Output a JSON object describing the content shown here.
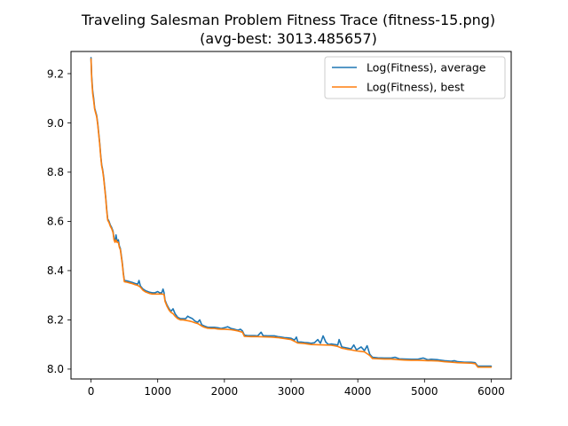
{
  "chart_data": {
    "type": "line",
    "title": "Traveling Salesman Problem Fitness Trace (fitness-15.png)",
    "subtitle": "(avg-best: 3013.485657)",
    "xlabel": "",
    "ylabel": "",
    "xlim": [
      -300,
      6300
    ],
    "ylim": [
      7.96,
      9.29
    ],
    "xticks": [
      0,
      1000,
      2000,
      3000,
      4000,
      5000,
      6000
    ],
    "xtick_labels": [
      "0",
      "1000",
      "2000",
      "3000",
      "4000",
      "5000",
      "6000"
    ],
    "yticks": [
      8.0,
      8.2,
      8.4,
      8.6,
      8.8,
      9.0,
      9.2
    ],
    "ytick_labels": [
      "8.0",
      "8.2",
      "8.4",
      "8.6",
      "8.8",
      "9.0",
      "9.2"
    ],
    "grid": false,
    "legend_position": "top-right",
    "series": [
      {
        "name": "Log(Fitness), average",
        "color": "#1f77b4",
        "points": [
          [
            0,
            9.265
          ],
          [
            10,
            9.19
          ],
          [
            25,
            9.13
          ],
          [
            40,
            9.1
          ],
          [
            55,
            9.06
          ],
          [
            70,
            9.045
          ],
          [
            85,
            9.03
          ],
          [
            100,
            9.0
          ],
          [
            115,
            8.96
          ],
          [
            130,
            8.92
          ],
          [
            145,
            8.87
          ],
          [
            160,
            8.83
          ],
          [
            175,
            8.81
          ],
          [
            190,
            8.78
          ],
          [
            205,
            8.74
          ],
          [
            220,
            8.7
          ],
          [
            235,
            8.65
          ],
          [
            250,
            8.61
          ],
          [
            270,
            8.6
          ],
          [
            290,
            8.585
          ],
          [
            310,
            8.575
          ],
          [
            330,
            8.56
          ],
          [
            345,
            8.53
          ],
          [
            360,
            8.52
          ],
          [
            375,
            8.545
          ],
          [
            390,
            8.52
          ],
          [
            410,
            8.525
          ],
          [
            425,
            8.5
          ],
          [
            440,
            8.49
          ],
          [
            455,
            8.46
          ],
          [
            470,
            8.43
          ],
          [
            485,
            8.39
          ],
          [
            500,
            8.36
          ],
          [
            540,
            8.358
          ],
          [
            580,
            8.355
          ],
          [
            620,
            8.352
          ],
          [
            660,
            8.348
          ],
          [
            700,
            8.345
          ],
          [
            720,
            8.36
          ],
          [
            740,
            8.338
          ],
          [
            780,
            8.325
          ],
          [
            820,
            8.318
          ],
          [
            850,
            8.315
          ],
          [
            880,
            8.312
          ],
          [
            920,
            8.31
          ],
          [
            960,
            8.31
          ],
          [
            1000,
            8.315
          ],
          [
            1030,
            8.31
          ],
          [
            1060,
            8.31
          ],
          [
            1080,
            8.325
          ],
          [
            1095,
            8.31
          ],
          [
            1110,
            8.28
          ],
          [
            1140,
            8.26
          ],
          [
            1170,
            8.245
          ],
          [
            1200,
            8.235
          ],
          [
            1230,
            8.245
          ],
          [
            1260,
            8.225
          ],
          [
            1300,
            8.21
          ],
          [
            1340,
            8.205
          ],
          [
            1380,
            8.205
          ],
          [
            1420,
            8.205
          ],
          [
            1450,
            8.215
          ],
          [
            1480,
            8.21
          ],
          [
            1520,
            8.205
          ],
          [
            1560,
            8.195
          ],
          [
            1600,
            8.19
          ],
          [
            1630,
            8.2
          ],
          [
            1660,
            8.18
          ],
          [
            1700,
            8.175
          ],
          [
            1750,
            8.17
          ],
          [
            1800,
            8.17
          ],
          [
            1850,
            8.17
          ],
          [
            1900,
            8.168
          ],
          [
            1950,
            8.165
          ],
          [
            2000,
            8.168
          ],
          [
            2050,
            8.172
          ],
          [
            2100,
            8.165
          ],
          [
            2150,
            8.162
          ],
          [
            2200,
            8.158
          ],
          [
            2240,
            8.162
          ],
          [
            2270,
            8.155
          ],
          [
            2300,
            8.138
          ],
          [
            2350,
            8.136
          ],
          [
            2400,
            8.136
          ],
          [
            2450,
            8.136
          ],
          [
            2500,
            8.135
          ],
          [
            2550,
            8.15
          ],
          [
            2580,
            8.136
          ],
          [
            2650,
            8.135
          ],
          [
            2700,
            8.135
          ],
          [
            2750,
            8.135
          ],
          [
            2800,
            8.132
          ],
          [
            2850,
            8.13
          ],
          [
            2900,
            8.128
          ],
          [
            2950,
            8.127
          ],
          [
            3000,
            8.125
          ],
          [
            3050,
            8.118
          ],
          [
            3080,
            8.13
          ],
          [
            3100,
            8.11
          ],
          [
            3150,
            8.11
          ],
          [
            3200,
            8.108
          ],
          [
            3250,
            8.107
          ],
          [
            3300,
            8.105
          ],
          [
            3350,
            8.107
          ],
          [
            3400,
            8.12
          ],
          [
            3440,
            8.105
          ],
          [
            3480,
            8.135
          ],
          [
            3520,
            8.11
          ],
          [
            3560,
            8.1
          ],
          [
            3600,
            8.102
          ],
          [
            3650,
            8.1
          ],
          [
            3700,
            8.098
          ],
          [
            3720,
            8.12
          ],
          [
            3760,
            8.09
          ],
          [
            3800,
            8.088
          ],
          [
            3850,
            8.085
          ],
          [
            3900,
            8.082
          ],
          [
            3940,
            8.098
          ],
          [
            3980,
            8.078
          ],
          [
            4050,
            8.09
          ],
          [
            4100,
            8.075
          ],
          [
            4140,
            8.095
          ],
          [
            4180,
            8.06
          ],
          [
            4220,
            8.048
          ],
          [
            4300,
            8.046
          ],
          [
            4400,
            8.045
          ],
          [
            4500,
            8.045
          ],
          [
            4560,
            8.048
          ],
          [
            4620,
            8.042
          ],
          [
            4700,
            8.041
          ],
          [
            4800,
            8.04
          ],
          [
            4900,
            8.04
          ],
          [
            4980,
            8.045
          ],
          [
            5050,
            8.038
          ],
          [
            5100,
            8.04
          ],
          [
            5200,
            8.038
          ],
          [
            5300,
            8.034
          ],
          [
            5400,
            8.032
          ],
          [
            5450,
            8.034
          ],
          [
            5500,
            8.03
          ],
          [
            5600,
            8.028
          ],
          [
            5700,
            8.028
          ],
          [
            5760,
            8.026
          ],
          [
            5800,
            8.012
          ],
          [
            5900,
            8.012
          ],
          [
            6000,
            8.012
          ]
        ]
      },
      {
        "name": "Log(Fitness), best",
        "color": "#ff7f0e",
        "points": [
          [
            0,
            9.26
          ],
          [
            10,
            9.18
          ],
          [
            25,
            9.12
          ],
          [
            40,
            9.09
          ],
          [
            55,
            9.055
          ],
          [
            70,
            9.04
          ],
          [
            85,
            9.025
          ],
          [
            100,
            8.995
          ],
          [
            115,
            8.955
          ],
          [
            130,
            8.915
          ],
          [
            145,
            8.865
          ],
          [
            160,
            8.825
          ],
          [
            175,
            8.805
          ],
          [
            190,
            8.775
          ],
          [
            205,
            8.735
          ],
          [
            220,
            8.695
          ],
          [
            235,
            8.645
          ],
          [
            250,
            8.605
          ],
          [
            270,
            8.595
          ],
          [
            290,
            8.58
          ],
          [
            310,
            8.57
          ],
          [
            330,
            8.555
          ],
          [
            345,
            8.525
          ],
          [
            360,
            8.515
          ],
          [
            375,
            8.525
          ],
          [
            390,
            8.515
          ],
          [
            410,
            8.515
          ],
          [
            425,
            8.495
          ],
          [
            440,
            8.485
          ],
          [
            455,
            8.455
          ],
          [
            470,
            8.425
          ],
          [
            485,
            8.385
          ],
          [
            500,
            8.355
          ],
          [
            540,
            8.353
          ],
          [
            580,
            8.35
          ],
          [
            620,
            8.347
          ],
          [
            660,
            8.343
          ],
          [
            700,
            8.34
          ],
          [
            740,
            8.333
          ],
          [
            780,
            8.32
          ],
          [
            820,
            8.313
          ],
          [
            850,
            8.31
          ],
          [
            880,
            8.307
          ],
          [
            920,
            8.305
          ],
          [
            960,
            8.305
          ],
          [
            1000,
            8.305
          ],
          [
            1030,
            8.305
          ],
          [
            1060,
            8.305
          ],
          [
            1095,
            8.303
          ],
          [
            1110,
            8.275
          ],
          [
            1140,
            8.255
          ],
          [
            1170,
            8.24
          ],
          [
            1200,
            8.23
          ],
          [
            1230,
            8.225
          ],
          [
            1260,
            8.215
          ],
          [
            1300,
            8.205
          ],
          [
            1340,
            8.2
          ],
          [
            1380,
            8.2
          ],
          [
            1420,
            8.198
          ],
          [
            1480,
            8.195
          ],
          [
            1520,
            8.192
          ],
          [
            1560,
            8.188
          ],
          [
            1600,
            8.185
          ],
          [
            1660,
            8.175
          ],
          [
            1700,
            8.17
          ],
          [
            1750,
            8.166
          ],
          [
            1800,
            8.165
          ],
          [
            1850,
            8.165
          ],
          [
            1900,
            8.163
          ],
          [
            1950,
            8.162
          ],
          [
            2000,
            8.162
          ],
          [
            2100,
            8.16
          ],
          [
            2150,
            8.158
          ],
          [
            2200,
            8.155
          ],
          [
            2270,
            8.15
          ],
          [
            2300,
            8.133
          ],
          [
            2400,
            8.132
          ],
          [
            2500,
            8.132
          ],
          [
            2600,
            8.131
          ],
          [
            2700,
            8.13
          ],
          [
            2800,
            8.128
          ],
          [
            2850,
            8.126
          ],
          [
            2900,
            8.124
          ],
          [
            2950,
            8.122
          ],
          [
            3000,
            8.12
          ],
          [
            3050,
            8.113
          ],
          [
            3100,
            8.106
          ],
          [
            3200,
            8.104
          ],
          [
            3300,
            8.1
          ],
          [
            3400,
            8.099
          ],
          [
            3500,
            8.098
          ],
          [
            3600,
            8.097
          ],
          [
            3650,
            8.095
          ],
          [
            3700,
            8.092
          ],
          [
            3760,
            8.085
          ],
          [
            3800,
            8.083
          ],
          [
            3850,
            8.08
          ],
          [
            3900,
            8.078
          ],
          [
            3980,
            8.074
          ],
          [
            4100,
            8.07
          ],
          [
            4180,
            8.055
          ],
          [
            4220,
            8.043
          ],
          [
            4300,
            8.042
          ],
          [
            4400,
            8.041
          ],
          [
            4500,
            8.041
          ],
          [
            4620,
            8.038
          ],
          [
            4700,
            8.037
          ],
          [
            4800,
            8.036
          ],
          [
            4900,
            8.036
          ],
          [
            5050,
            8.034
          ],
          [
            5100,
            8.034
          ],
          [
            5200,
            8.033
          ],
          [
            5300,
            8.03
          ],
          [
            5400,
            8.028
          ],
          [
            5500,
            8.026
          ],
          [
            5600,
            8.025
          ],
          [
            5700,
            8.024
          ],
          [
            5760,
            8.022
          ],
          [
            5800,
            8.008
          ],
          [
            5900,
            8.008
          ],
          [
            6000,
            8.008
          ]
        ]
      }
    ]
  }
}
